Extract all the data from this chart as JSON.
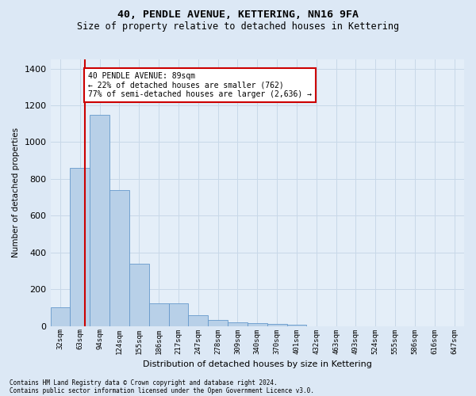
{
  "title1": "40, PENDLE AVENUE, KETTERING, NN16 9FA",
  "title2": "Size of property relative to detached houses in Kettering",
  "xlabel": "Distribution of detached houses by size in Kettering",
  "ylabel": "Number of detached properties",
  "footnote1": "Contains HM Land Registry data © Crown copyright and database right 2024.",
  "footnote2": "Contains public sector information licensed under the Open Government Licence v3.0.",
  "bin_labels": [
    "32sqm",
    "63sqm",
    "94sqm",
    "124sqm",
    "155sqm",
    "186sqm",
    "217sqm",
    "247sqm",
    "278sqm",
    "309sqm",
    "340sqm",
    "370sqm",
    "401sqm",
    "432sqm",
    "463sqm",
    "493sqm",
    "524sqm",
    "555sqm",
    "586sqm",
    "616sqm",
    "647sqm"
  ],
  "bar_heights": [
    100,
    860,
    1150,
    740,
    340,
    125,
    125,
    60,
    35,
    20,
    15,
    10,
    8,
    0,
    0,
    0,
    0,
    0,
    0,
    0,
    0
  ],
  "bar_color": "#b8d0e8",
  "bar_edge_color": "#6699cc",
  "vline_index": 1.75,
  "vline_color": "#cc0000",
  "annotation_label": "40 PENDLE AVENUE: 89sqm",
  "annotation_line1": "← 22% of detached houses are smaller (762)",
  "annotation_line2": "77% of semi-detached houses are larger (2,636) →",
  "annotation_box_color": "#ffffff",
  "annotation_box_edge": "#cc0000",
  "ylim": [
    0,
    1450
  ],
  "yticks": [
    0,
    200,
    400,
    600,
    800,
    1000,
    1200,
    1400
  ],
  "grid_color": "#c8d8e8",
  "bg_color": "#dce8f5",
  "plot_bg_color": "#e4eef8",
  "figsize": [
    6.0,
    5.0
  ],
  "dpi": 100
}
